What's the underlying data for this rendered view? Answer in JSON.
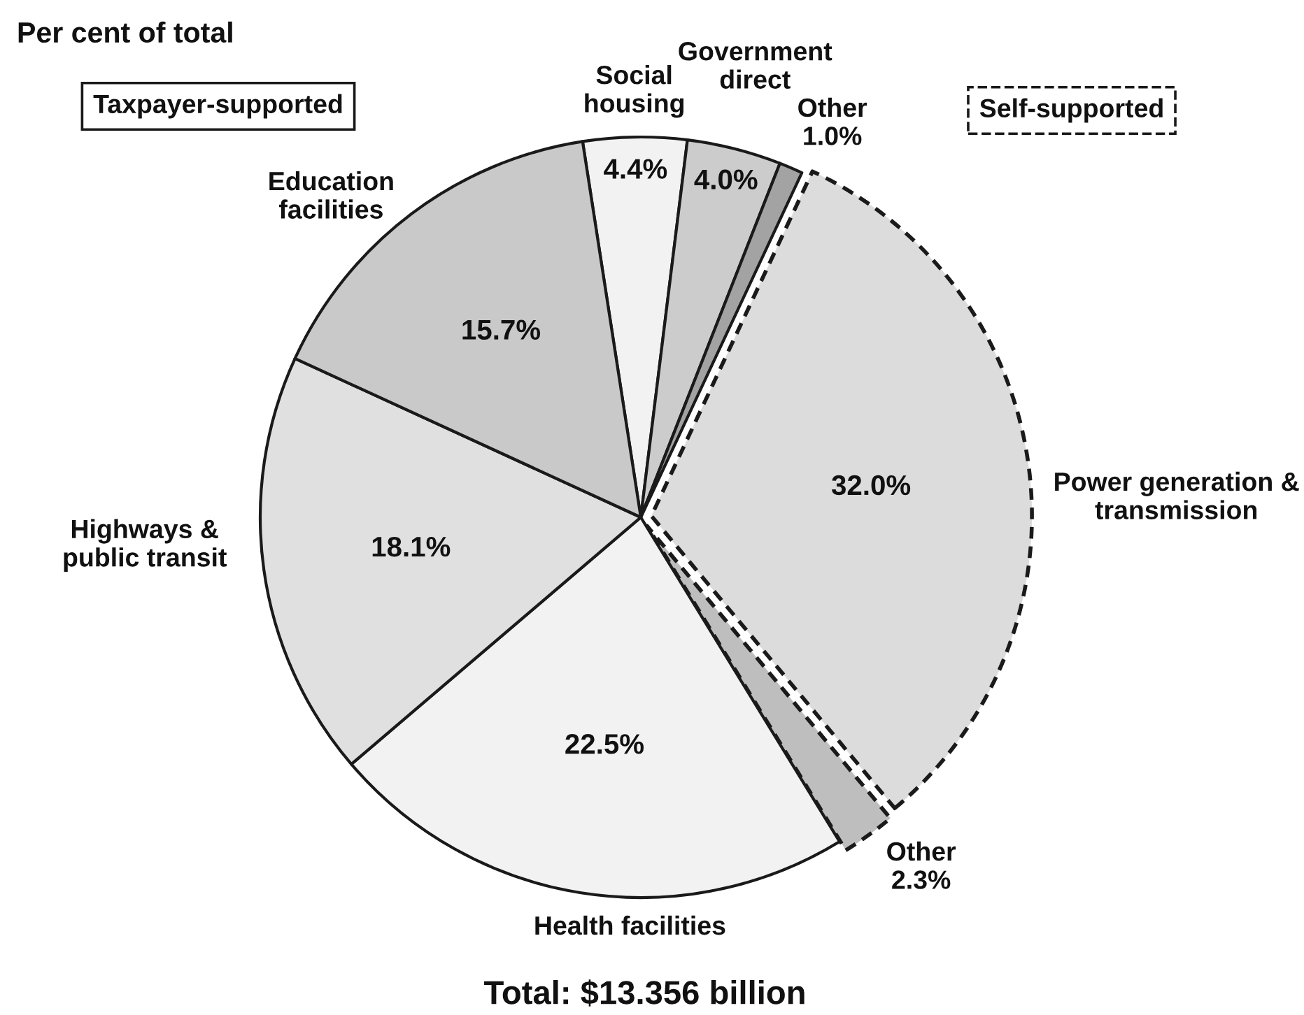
{
  "chart_data": {
    "type": "pie",
    "title": "Per cent of total",
    "categories": [
      "Social\nhousing",
      "Government\ndirect",
      "Other",
      "Power generation &\ntransmission",
      "Other",
      "Health facilities",
      "Highways &\npublic transit",
      "Education\nfacilities"
    ],
    "values": [
      4.4,
      4.0,
      1.0,
      32.0,
      2.3,
      22.5,
      18.1,
      15.7
    ],
    "colors": [
      "#f2f2f2",
      "#cccccc",
      "#a3a3a3",
      "#dcdcdc",
      "#bebebe",
      "#f2f2f2",
      "#e0e0e0",
      "#c9c9c9"
    ],
    "value_labels": [
      "4.4%",
      "4.0%",
      "1.0%",
      "32.0%",
      "2.3%",
      "22.5%",
      "18.1%",
      "15.7%"
    ],
    "annotations": [
      "Taxpayer-supported",
      "Self-supported",
      "Total: $13.356 billion"
    ]
  }
}
